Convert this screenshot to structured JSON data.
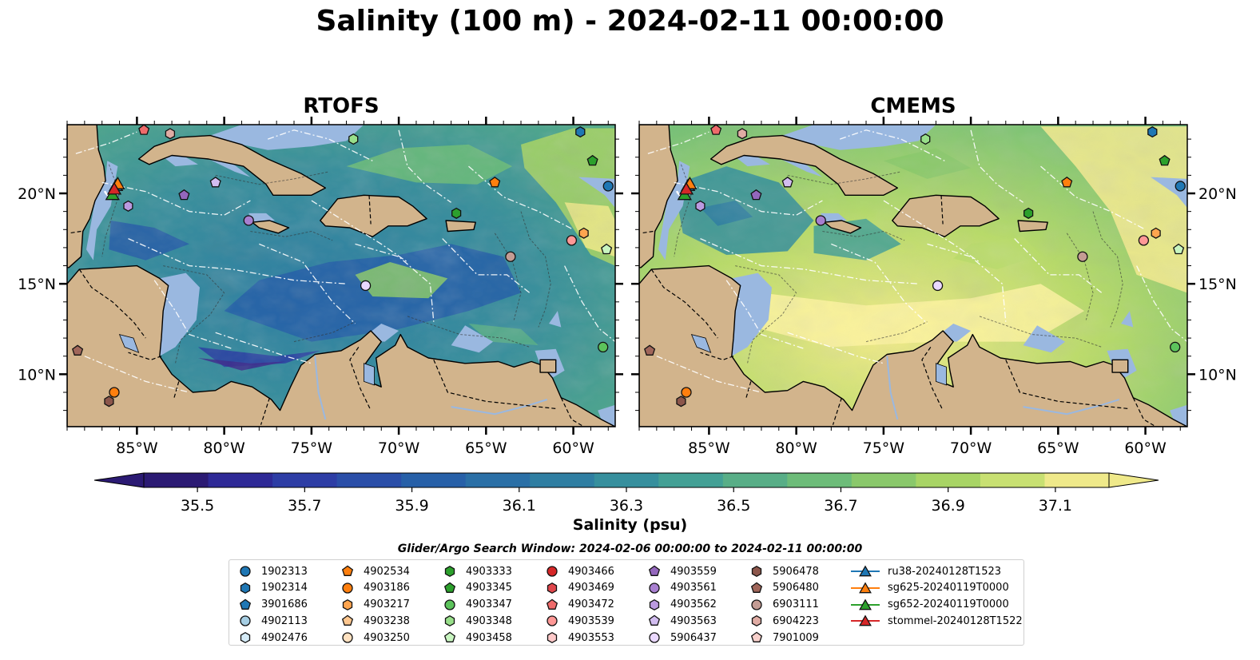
{
  "title": "Salinity (100 m) - 2024-02-11 00:00:00",
  "panels": [
    {
      "title": "RTOFS",
      "variant": "rtofs"
    },
    {
      "title": "CMEMS",
      "variant": "cmems"
    }
  ],
  "map_extent": {
    "lon": [
      -89.0,
      -57.6
    ],
    "lat": [
      7.1,
      23.8
    ]
  },
  "lon_ticks": [
    {
      "value": -85,
      "label": "85°W"
    },
    {
      "value": -80,
      "label": "80°W"
    },
    {
      "value": -75,
      "label": "75°W"
    },
    {
      "value": -70,
      "label": "70°W"
    },
    {
      "value": -65,
      "label": "65°W"
    },
    {
      "value": -60,
      "label": "60°W"
    }
  ],
  "lat_ticks": [
    {
      "value": 10,
      "label": "10°N"
    },
    {
      "value": 15,
      "label": "15°N"
    },
    {
      "value": 20,
      "label": "20°N"
    }
  ],
  "colors": {
    "land": "#d2b48c",
    "shelf": "#9ab8e0",
    "pacific": "#2a1e6a"
  },
  "colorbar": {
    "label": "Salinity (psu)",
    "ticks": [
      "35.5",
      "35.7",
      "35.9",
      "36.1",
      "36.3",
      "36.5",
      "36.7",
      "36.9",
      "37.1"
    ],
    "min": 35.4,
    "max": 37.2,
    "extend": "both",
    "colors": [
      "#2b1a73",
      "#2e2996",
      "#2d3da5",
      "#2a4ea8",
      "#2760a8",
      "#2a6fa6",
      "#2f7ea2",
      "#368f9d",
      "#43a095",
      "#58ae87",
      "#6dbc79",
      "#8ac86b",
      "#a8d465",
      "#c8e072",
      "#efe98a"
    ]
  },
  "search_window": "Glider/Argo Search Window: 2024-02-06 00:00:00 to 2024-02-11 00:00:00",
  "legend": [
    {
      "label": "1902313",
      "marker": "circle",
      "color": "#1f77b4"
    },
    {
      "label": "1902314",
      "marker": "hexagon",
      "color": "#1f77b4"
    },
    {
      "label": "3901686",
      "marker": "pentagon",
      "color": "#1f77b4"
    },
    {
      "label": "4902113",
      "marker": "circle",
      "color": "#a6cee3"
    },
    {
      "label": "4902476",
      "marker": "hexagon",
      "color": "#d5ebf7"
    },
    {
      "label": "4902534",
      "marker": "pentagon",
      "color": "#ff7f0e"
    },
    {
      "label": "4903186",
      "marker": "circle",
      "color": "#ff7f0e"
    },
    {
      "label": "4903217",
      "marker": "hexagon",
      "color": "#ffa54f"
    },
    {
      "label": "4903238",
      "marker": "pentagon",
      "color": "#ffc78f"
    },
    {
      "label": "4903250",
      "marker": "circle",
      "color": "#ffe1c0"
    },
    {
      "label": "4903333",
      "marker": "hexagon",
      "color": "#2ca02c"
    },
    {
      "label": "4903345",
      "marker": "pentagon",
      "color": "#2ca02c"
    },
    {
      "label": "4903347",
      "marker": "circle",
      "color": "#5cc35c"
    },
    {
      "label": "4903348",
      "marker": "hexagon",
      "color": "#98df8a"
    },
    {
      "label": "4903458",
      "marker": "pentagon",
      "color": "#c8f5c0"
    },
    {
      "label": "4903466",
      "marker": "circle",
      "color": "#d62728"
    },
    {
      "label": "4903469",
      "marker": "hexagon",
      "color": "#e0474c"
    },
    {
      "label": "4903472",
      "marker": "pentagon",
      "color": "#ef6b6b"
    },
    {
      "label": "4903539",
      "marker": "circle",
      "color": "#ff9896"
    },
    {
      "label": "4903553",
      "marker": "hexagon",
      "color": "#ffc9c9"
    },
    {
      "label": "4903559",
      "marker": "pentagon",
      "color": "#9467bd"
    },
    {
      "label": "4903561",
      "marker": "circle",
      "color": "#a87fd0"
    },
    {
      "label": "4903562",
      "marker": "hexagon",
      "color": "#bb9ae0"
    },
    {
      "label": "4903563",
      "marker": "pentagon",
      "color": "#d2bdf0"
    },
    {
      "label": "5906437",
      "marker": "circle",
      "color": "#ead8ff"
    },
    {
      "label": "5906478",
      "marker": "hexagon",
      "color": "#8c564b"
    },
    {
      "label": "5906480",
      "marker": "pentagon",
      "color": "#a0665a"
    },
    {
      "label": "6903111",
      "marker": "circle",
      "color": "#c49c94"
    },
    {
      "label": "6904223",
      "marker": "hexagon",
      "color": "#e0aca4"
    },
    {
      "label": "7901009",
      "marker": "pentagon",
      "color": "#f7d0cb"
    },
    {
      "label": "ru38-20240128T1523",
      "marker": "triangle",
      "color": "#1f77b4"
    },
    {
      "label": "sg625-20240119T0000",
      "marker": "triangle",
      "color": "#ff7f0e"
    },
    {
      "label": "sg652-20240119T0000",
      "marker": "triangle",
      "color": "#2ca02c"
    },
    {
      "label": "stommel-20240128T1522",
      "marker": "triangle",
      "color": "#d62728"
    }
  ],
  "floats": [
    {
      "id": "1902313",
      "lon": -58.0,
      "lat": 20.4
    },
    {
      "id": "1902314",
      "lon": -59.6,
      "lat": 23.4
    },
    {
      "id": "4902534",
      "lon": -64.5,
      "lat": 20.6
    },
    {
      "id": "4903345",
      "lon": -58.9,
      "lat": 21.8
    },
    {
      "id": "4903333",
      "lon": -66.7,
      "lat": 18.9
    },
    {
      "id": "4903347",
      "lon": -58.3,
      "lat": 11.5
    },
    {
      "id": "4903458",
      "lon": -58.1,
      "lat": 16.9
    },
    {
      "id": "4903348",
      "lon": -72.6,
      "lat": 23.0
    },
    {
      "id": "4903472",
      "lon": -84.6,
      "lat": 23.5
    },
    {
      "id": "6904223",
      "lon": -83.1,
      "lat": 23.3
    },
    {
      "id": "4903559",
      "lon": -82.3,
      "lat": 19.9
    },
    {
      "id": "4903563",
      "lon": -80.5,
      "lat": 20.6
    },
    {
      "id": "4903561",
      "lon": -78.6,
      "lat": 18.5
    },
    {
      "id": "4903562",
      "lon": -85.5,
      "lat": 19.3
    },
    {
      "id": "5906437",
      "lon": -71.9,
      "lat": 14.9
    },
    {
      "id": "6903111",
      "lon": -63.6,
      "lat": 16.5
    },
    {
      "id": "4903539",
      "lon": -60.1,
      "lat": 17.4
    },
    {
      "id": "4903217",
      "lon": -59.4,
      "lat": 17.8
    },
    {
      "id": "5906478",
      "lon": -86.6,
      "lat": 8.5
    },
    {
      "id": "5906480",
      "lon": -88.4,
      "lat": 11.3
    },
    {
      "id": "4903186",
      "lon": -86.3,
      "lat": 9.0
    }
  ],
  "gliders": [
    {
      "id": "ru38-20240128T1523",
      "lon": -86.2,
      "lat": 20.4
    },
    {
      "id": "sg625-20240119T0000",
      "lon": -86.1,
      "lat": 20.5
    },
    {
      "id": "sg652-20240119T0000",
      "lon": -86.4,
      "lat": 19.9
    },
    {
      "id": "stommel-20240128T1522",
      "lon": -86.3,
      "lat": 20.2
    }
  ]
}
